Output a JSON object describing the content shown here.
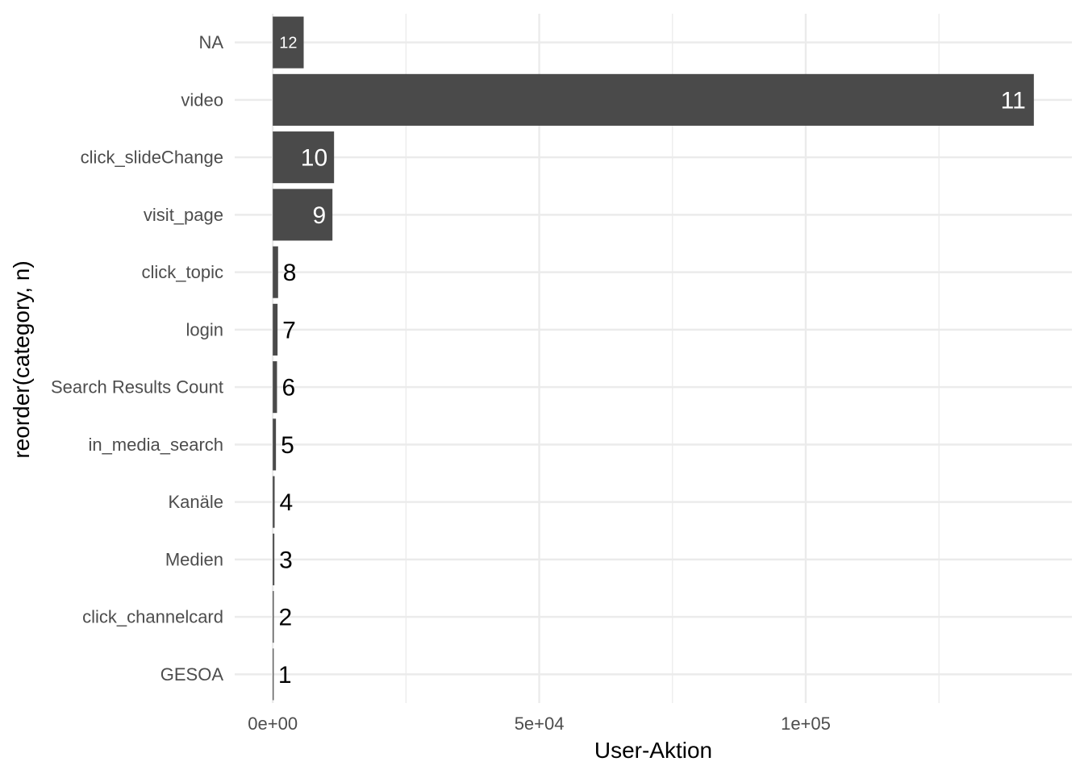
{
  "chart_data": {
    "type": "bar",
    "orientation": "horizontal",
    "title": "",
    "xlabel": "User-Aktion",
    "ylabel": "reorder(category, n)",
    "categories": [
      "GESOA",
      "click_channelcard",
      "Medien",
      "Kanäle",
      "in_media_search",
      "Search Results Count",
      "login",
      "click_topic",
      "visit_page",
      "click_slideChange",
      "video",
      "NA"
    ],
    "values": [
      100,
      200,
      300,
      350,
      600,
      800,
      900,
      1000,
      11200,
      11500,
      142800,
      5800
    ],
    "data_labels": [
      "1",
      "2",
      "3",
      "4",
      "5",
      "6",
      "7",
      "8",
      "9",
      "10",
      "11",
      "12"
    ],
    "x_ticks": [
      {
        "value": 0,
        "label": "0e+00"
      },
      {
        "value": 50000,
        "label": "5e+04"
      },
      {
        "value": 100000,
        "label": "1e+05"
      }
    ],
    "xlim": [
      -7140,
      149940
    ],
    "grid": true,
    "bar_color": "#4A4A4A",
    "label_color_inside": "#FFFFFF",
    "label_color_outside": "#000000"
  }
}
